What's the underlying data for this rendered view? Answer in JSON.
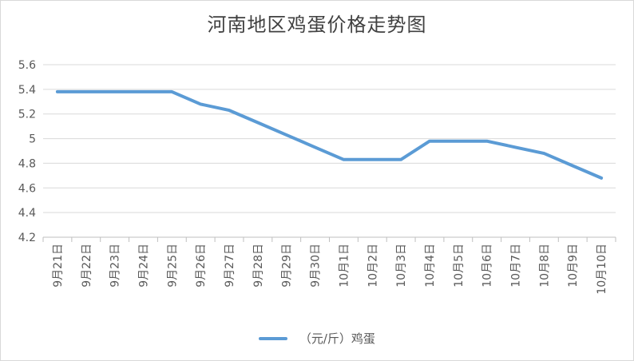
{
  "chart_data": {
    "type": "line",
    "title": "河南地区鸡蛋价格走势图",
    "xlabel": "",
    "ylabel": "",
    "categories": [
      "9月21日",
      "9月22日",
      "9月23日",
      "9月24日",
      "9月25日",
      "9月26日",
      "9月27日",
      "9月28日",
      "9月29日",
      "9月30日",
      "10月1日",
      "10月2日",
      "10月3日",
      "10月4日",
      "10月5日",
      "10月6日",
      "10月7日",
      "10月8日",
      "10月9日",
      "10月10日"
    ],
    "series": [
      {
        "name": "（元/斤）鸡蛋",
        "values": [
          5.38,
          5.38,
          5.38,
          5.38,
          5.38,
          5.28,
          5.23,
          5.13,
          5.03,
          4.93,
          4.83,
          4.83,
          4.83,
          4.98,
          4.98,
          4.98,
          4.93,
          4.88,
          4.78,
          4.68
        ],
        "color": "#5b9bd5"
      }
    ],
    "ylim": [
      4.2,
      5.6
    ],
    "yticks": [
      "4.2",
      "4.4",
      "4.6",
      "4.8",
      "5",
      "5.2",
      "5.4",
      "5.6"
    ],
    "grid": true,
    "legend": "bottom"
  }
}
